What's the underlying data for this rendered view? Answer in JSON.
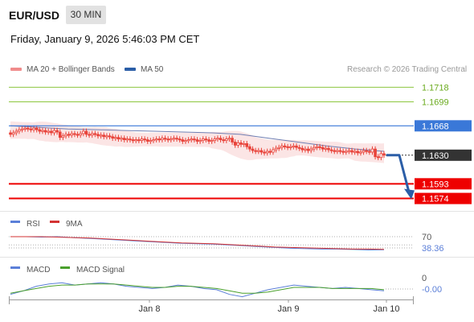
{
  "header": {
    "pair": "EUR/USD",
    "timeframe": "30 MIN",
    "timestamp": "Friday, January 9, 2026 5:46:03 PM CET"
  },
  "legend": {
    "bb_label": "MA 20 + Bollinger Bands",
    "ma50_label": "MA 50",
    "credit": "Research © 2026 Trading Central",
    "bb_color": "#f08c8c",
    "ma50_color": "#2b5ea7"
  },
  "colors": {
    "candle": "#e8433a",
    "bb_fill": "#fadcdc",
    "ma50": "#6f7fb3",
    "green_level": "#8cc63f",
    "blue_level": "#3a78d8",
    "red_level": "#ee0000",
    "current": "#333333",
    "arrow": "#2b5ea7",
    "rsi": "#5b7fd8",
    "rsi_ma": "#d33333",
    "macd": "#5b7fd8",
    "macd_signal": "#4aa02c"
  },
  "chart_data": [
    {
      "type": "candlestick",
      "title": "EUR/USD 30 MIN",
      "x_labels": [
        "Jan 8",
        "Jan 9",
        "Jan 10"
      ],
      "ylim": [
        1.156,
        1.1735
      ],
      "close": [
        1.1657,
        1.1659,
        1.1661,
        1.1663,
        1.1664,
        1.1665,
        1.1664,
        1.1663,
        1.1665,
        1.1663,
        1.1661,
        1.1662,
        1.166,
        1.1661,
        1.1659,
        1.1662,
        1.166,
        1.1653,
        1.1655,
        1.1657,
        1.1656,
        1.1658,
        1.1657,
        1.1656,
        1.1658,
        1.1661,
        1.1657,
        1.1656,
        1.1658,
        1.1657,
        1.1655,
        1.1656,
        1.1654,
        1.1655,
        1.1654,
        1.1652,
        1.1653,
        1.1651,
        1.1652,
        1.165,
        1.1651,
        1.165,
        1.1649,
        1.165,
        1.1649,
        1.1651,
        1.165,
        1.1648,
        1.1649,
        1.165,
        1.1651,
        1.165,
        1.1652,
        1.1651,
        1.165,
        1.1651,
        1.1652,
        1.1651,
        1.165,
        1.1648,
        1.1649,
        1.165,
        1.1651,
        1.165,
        1.1648,
        1.1649,
        1.1651,
        1.165,
        1.1648,
        1.1649,
        1.1651,
        1.1652,
        1.165,
        1.1649,
        1.1651,
        1.1652,
        1.1647,
        1.1643,
        1.1646,
        1.1644,
        1.1645,
        1.1641,
        1.1638,
        1.1636,
        1.1635,
        1.1636,
        1.1634,
        1.1633,
        1.1635,
        1.1634,
        1.1637,
        1.1639,
        1.164,
        1.1642,
        1.1641,
        1.164,
        1.1641,
        1.1642,
        1.164,
        1.1639,
        1.1637,
        1.1638,
        1.1636,
        1.1638,
        1.164,
        1.1641,
        1.164,
        1.1638,
        1.1639,
        1.1637,
        1.1636,
        1.1635,
        1.1636,
        1.1635,
        1.1634,
        1.1635,
        1.1636,
        1.1634,
        1.1635,
        1.1633,
        1.1634,
        1.1636,
        1.1635,
        1.1634,
        1.1638,
        1.1628,
        1.1627,
        1.1632,
        1.163
      ],
      "ma50": [
        1.1668,
        1.1666,
        1.1664,
        1.1663,
        1.1662,
        1.1661,
        1.166,
        1.1659,
        1.1657,
        1.1652,
        1.1647,
        1.1642,
        1.1638,
        1.1635
      ],
      "levels": [
        {
          "value": 1.1718,
          "label": "1.1718",
          "kind": "resistance"
        },
        {
          "value": 1.1699,
          "label": "1.1699",
          "kind": "resistance"
        },
        {
          "value": 1.1668,
          "label": "1.1668",
          "kind": "pivot"
        },
        {
          "value": 1.163,
          "label": "1.1630",
          "kind": "current"
        },
        {
          "value": 1.1593,
          "label": "1.1593",
          "kind": "support"
        },
        {
          "value": 1.1574,
          "label": "1.1574",
          "kind": "support"
        }
      ],
      "projection": {
        "from": 1.163,
        "to": 1.1574
      },
      "legend": [
        "MA 20 + Bollinger Bands",
        "MA 50"
      ]
    },
    {
      "type": "line",
      "title": "RSI",
      "series": [
        {
          "name": "RSI",
          "values": [
            70,
            70,
            69,
            70,
            68,
            66,
            64,
            62,
            60,
            58,
            56,
            54,
            53,
            52,
            50,
            48,
            46,
            44,
            42,
            41,
            40,
            40,
            39,
            38,
            38.36
          ]
        },
        {
          "name": "9MA",
          "values": [
            70,
            70,
            70,
            69,
            68,
            67,
            65,
            63,
            61,
            59,
            57,
            55,
            54,
            53,
            51,
            49,
            47,
            45,
            44,
            43,
            42,
            41,
            40,
            40,
            39.5
          ]
        }
      ],
      "levels": [
        70
      ],
      "current_value": "38.36",
      "level_labels": [
        "70"
      ]
    },
    {
      "type": "line",
      "title": "MACD",
      "series": [
        {
          "name": "MACD",
          "values": [
            -0.0006,
            -0.0003,
            0.0001,
            0.0003,
            0.0004,
            0.0002,
            0.0003,
            0.0004,
            0.0003,
            0.0001,
            0.0,
            -0.0001,
            0.0,
            0.0002,
            0.0001,
            -0.0001,
            -0.0002,
            -0.0006,
            -0.0008,
            -0.0005,
            -0.0002,
            0.0,
            0.0002,
            0.0001,
            0.0,
            -0.0001,
            0.0,
            -0.0001,
            -0.0002,
            -0.0003
          ]
        },
        {
          "name": "MACD Signal",
          "values": [
            -0.0005,
            -0.0003,
            -0.0001,
            0.0001,
            0.0002,
            0.0002,
            0.0003,
            0.0003,
            0.0003,
            0.0002,
            0.0001,
            0.0,
            0.0,
            0.0001,
            0.0001,
            0.0,
            -0.0001,
            -0.0003,
            -0.0005,
            -0.0005,
            -0.0004,
            -0.0002,
            0.0,
            0.0,
            0.0,
            -0.0001,
            -0.0001,
            -0.0001,
            -0.0001,
            -0.0002
          ]
        }
      ],
      "levels": [
        0
      ],
      "current_value": "-0.00",
      "level_labels": [
        "0"
      ]
    }
  ]
}
